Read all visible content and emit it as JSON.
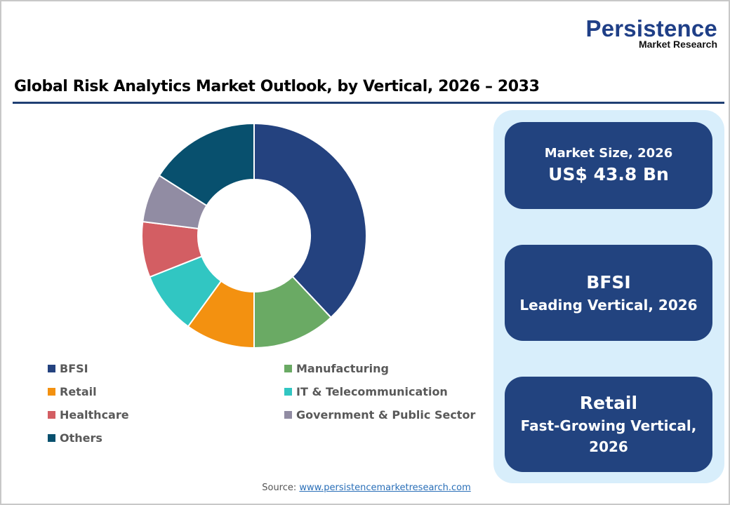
{
  "logo": {
    "main": "Persistence",
    "sub": "Market Research"
  },
  "title": "Global Risk Analytics Market Outlook, by Vertical, 2026 – 2033",
  "colors": {
    "brand": "#1f3f87",
    "rule": "#1f3f73",
    "panel_bg": "#d8eefb",
    "card_bg": "#22437f"
  },
  "chart_data": {
    "type": "pie",
    "variant": "donut",
    "title": "Global Risk Analytics Market Outlook, by Vertical, 2026 – 2033",
    "categories": [
      "BFSI",
      "Manufacturing",
      "Retail",
      "IT & Telecommunication",
      "Healthcare",
      "Government & Public Sector",
      "Others"
    ],
    "values": [
      38,
      12,
      10,
      9,
      8,
      7,
      16
    ],
    "unit": "% share (estimated from slice angles)",
    "colors": [
      "#24427f",
      "#6aaa64",
      "#f39110",
      "#31c6c2",
      "#d35e63",
      "#918ca3",
      "#08506e"
    ],
    "legend_position": "bottom",
    "start_angle": "12 o'clock, clockwise"
  },
  "legend": [
    {
      "label": "BFSI",
      "color": "#24427f"
    },
    {
      "label": "Manufacturing",
      "color": "#6aaa64"
    },
    {
      "label": "Retail",
      "color": "#f39110"
    },
    {
      "label": "IT & Telecommunication",
      "color": "#31c6c2"
    },
    {
      "label": "Healthcare",
      "color": "#d35e63"
    },
    {
      "label": "Government & Public Sector",
      "color": "#918ca3"
    },
    {
      "label": "Others",
      "color": "#08506e"
    }
  ],
  "cards": [
    {
      "line1": "Market Size, 2026",
      "line2": "US$ 43.8 Bn"
    },
    {
      "line1": "BFSI",
      "line2": "Leading Vertical, 2026"
    },
    {
      "line1": "Retail",
      "line2": "Fast-Growing Vertical,",
      "line3": "2026"
    }
  ],
  "source": {
    "label": "Source:",
    "link": "www.persistencemarketresearch.com"
  }
}
